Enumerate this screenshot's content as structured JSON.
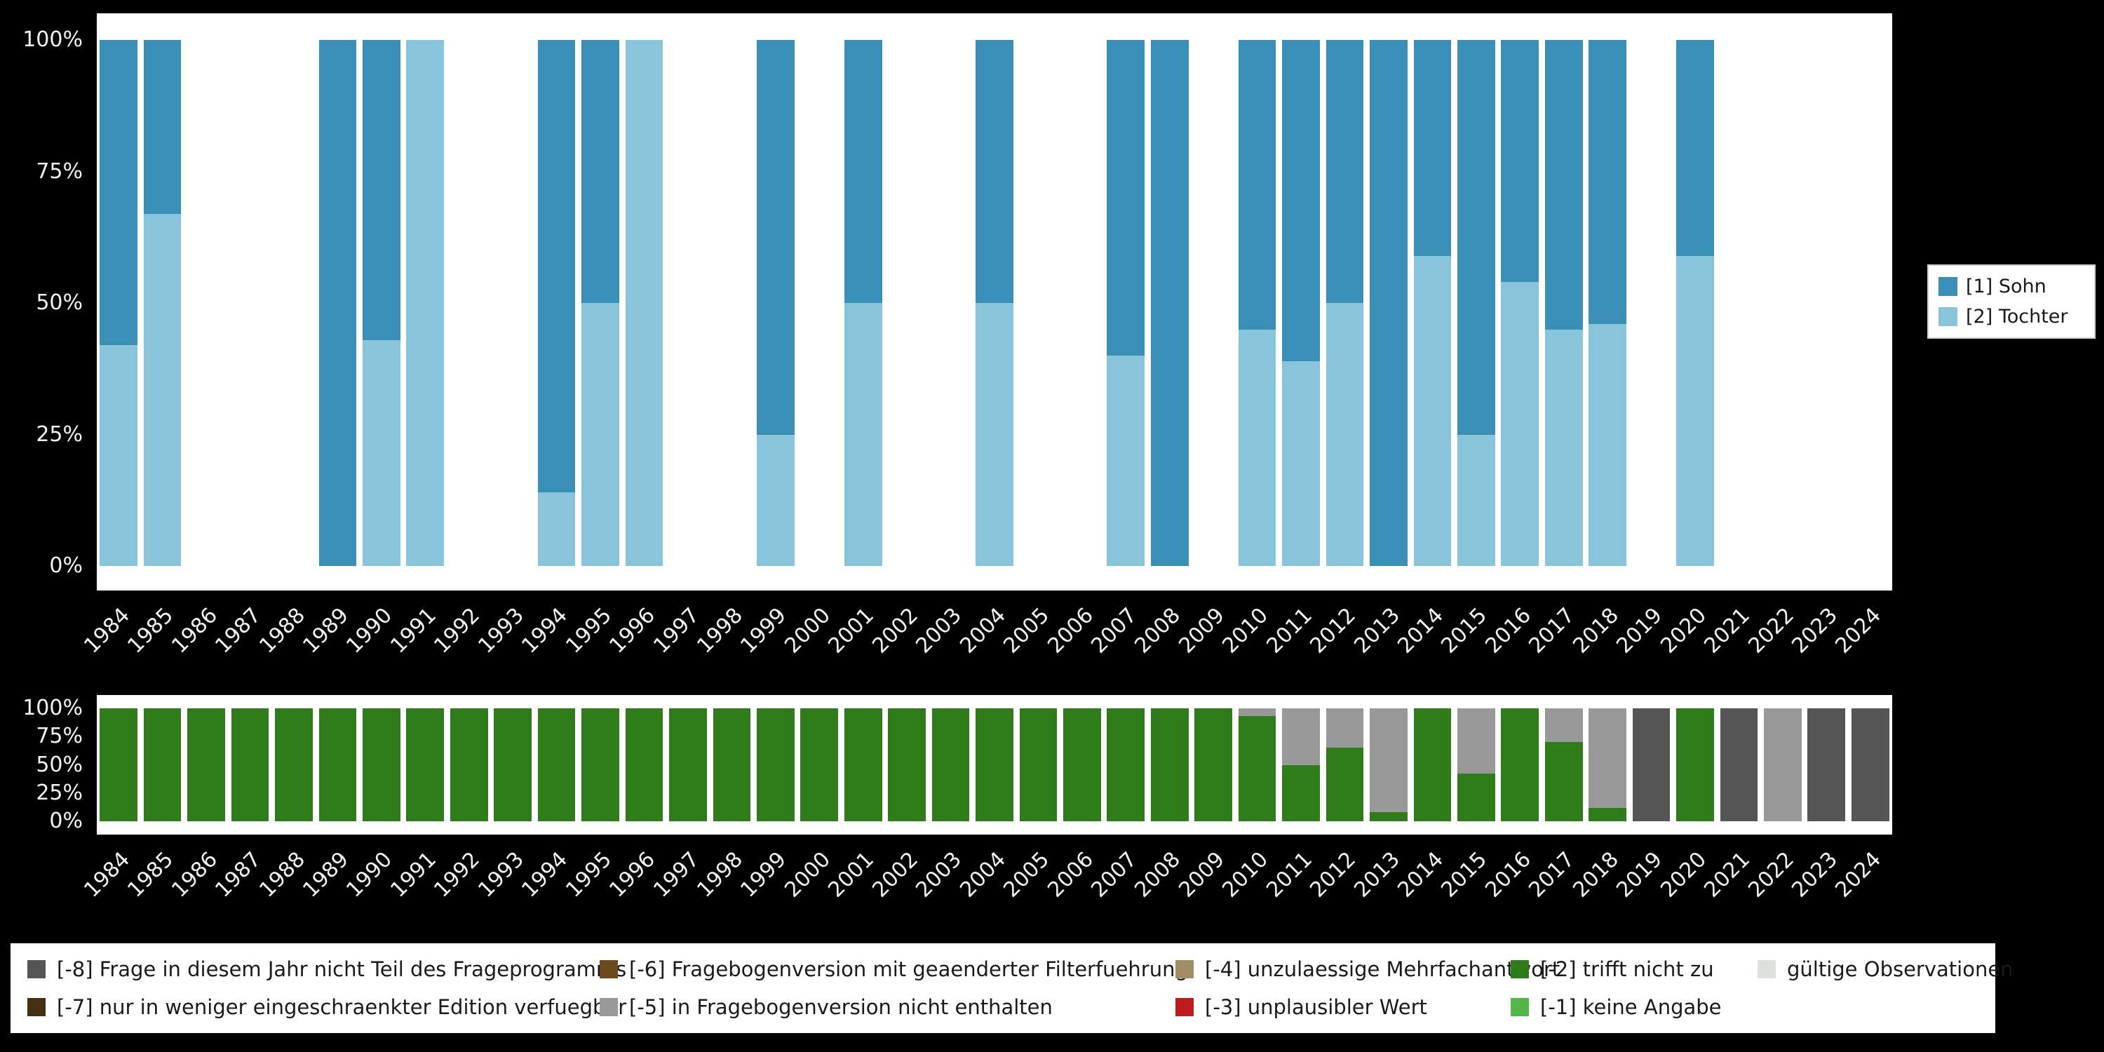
{
  "background_color": "#000000",
  "panel_color": "#ffffff",
  "chart_data": [
    {
      "id": "values-chart",
      "type": "bar",
      "stacked": true,
      "unit": "percent",
      "title": "",
      "xlabel": "",
      "ylabel": "",
      "ylim": [
        0,
        100
      ],
      "grid": false,
      "legend_position": "right",
      "categories": [
        "1984",
        "1985",
        "1986",
        "1987",
        "1988",
        "1989",
        "1990",
        "1991",
        "1992",
        "1993",
        "1994",
        "1995",
        "1996",
        "1997",
        "1998",
        "1999",
        "2000",
        "2001",
        "2002",
        "2003",
        "2004",
        "2005",
        "2006",
        "2007",
        "2008",
        "2009",
        "2010",
        "2011",
        "2012",
        "2013",
        "2014",
        "2015",
        "2016",
        "2017",
        "2018",
        "2019",
        "2020",
        "2021",
        "2022",
        "2023",
        "2024"
      ],
      "yticks": [
        {
          "label": "0%",
          "value": 0
        },
        {
          "label": "25%",
          "value": 25
        },
        {
          "label": "50%",
          "value": 50
        },
        {
          "label": "75%",
          "value": 75
        },
        {
          "label": "100%",
          "value": 100
        }
      ],
      "series": [
        {
          "name": "[1] Sohn",
          "color": "#3a8fb7",
          "values": [
            58,
            33,
            null,
            null,
            null,
            100,
            57,
            0,
            null,
            null,
            86,
            50,
            0,
            null,
            null,
            75,
            null,
            50,
            null,
            null,
            50,
            null,
            null,
            60,
            100,
            null,
            55,
            61,
            50,
            100,
            41,
            75,
            46,
            55,
            54,
            null,
            41,
            null,
            null,
            null,
            null
          ]
        },
        {
          "name": "[2] Tochter",
          "color": "#89c5da",
          "values": [
            42,
            67,
            null,
            null,
            null,
            0,
            43,
            100,
            null,
            null,
            14,
            50,
            100,
            null,
            null,
            25,
            null,
            50,
            null,
            null,
            50,
            null,
            null,
            40,
            0,
            null,
            45,
            39,
            50,
            0,
            59,
            25,
            54,
            45,
            46,
            null,
            59,
            null,
            null,
            null,
            null
          ]
        }
      ]
    },
    {
      "id": "missings-chart",
      "type": "bar",
      "stacked": true,
      "unit": "percent",
      "title": "",
      "xlabel": "",
      "ylabel": "",
      "ylim": [
        0,
        100
      ],
      "grid": false,
      "legend_position": "bottom",
      "categories": [
        "1984",
        "1985",
        "1986",
        "1987",
        "1988",
        "1989",
        "1990",
        "1991",
        "1992",
        "1993",
        "1994",
        "1995",
        "1996",
        "1997",
        "1998",
        "1999",
        "2000",
        "2001",
        "2002",
        "2003",
        "2004",
        "2005",
        "2006",
        "2007",
        "2008",
        "2009",
        "2010",
        "2011",
        "2012",
        "2013",
        "2014",
        "2015",
        "2016",
        "2017",
        "2018",
        "2019",
        "2020",
        "2021",
        "2022",
        "2023",
        "2024"
      ],
      "yticks": [
        {
          "label": "0%",
          "value": 0
        },
        {
          "label": "25%",
          "value": 25
        },
        {
          "label": "50%",
          "value": 50
        },
        {
          "label": "75%",
          "value": 75
        },
        {
          "label": "100%",
          "value": 100
        }
      ],
      "series": [
        {
          "name": "[-8] Frage in diesem Jahr nicht Teil des Frageprogramms",
          "color": "#555555",
          "values": [
            0,
            0,
            0,
            0,
            0,
            0,
            0,
            0,
            0,
            0,
            0,
            0,
            0,
            0,
            0,
            0,
            0,
            0,
            0,
            0,
            0,
            0,
            0,
            0,
            0,
            0,
            0,
            0,
            0,
            0,
            0,
            0,
            0,
            0,
            0,
            100,
            0,
            100,
            0,
            100,
            100
          ]
        },
        {
          "name": "[-5] in Fragebogenversion nicht enthalten",
          "color": "#999999",
          "values": [
            0,
            0,
            0,
            0,
            0,
            0,
            0,
            0,
            0,
            0,
            0,
            0,
            0,
            0,
            0,
            0,
            0,
            0,
            0,
            0,
            0,
            0,
            0,
            0,
            0,
            0,
            7,
            50,
            35,
            92,
            0,
            58,
            0,
            30,
            88,
            0,
            0,
            0,
            100,
            0,
            0
          ]
        },
        {
          "name": "[-2] trifft nicht zu",
          "color": "#2e7d1a",
          "values": [
            100,
            100,
            100,
            100,
            100,
            100,
            100,
            100,
            100,
            100,
            100,
            100,
            100,
            100,
            100,
            100,
            100,
            100,
            100,
            100,
            100,
            100,
            100,
            100,
            100,
            100,
            93,
            50,
            65,
            8,
            100,
            42,
            100,
            70,
            12,
            0,
            100,
            0,
            0,
            0,
            0
          ]
        }
      ]
    }
  ],
  "values_legend": {
    "items": [
      {
        "label": "[1] Sohn",
        "color": "#3a8fb7"
      },
      {
        "label": "[2] Tochter",
        "color": "#89c5da"
      }
    ]
  },
  "missing_legend": {
    "entries": [
      {
        "label": "[-8] Frage in diesem Jahr nicht Teil des Frageprogramms",
        "color": "#555555"
      },
      {
        "label": "[-7] nur in weniger eingeschraenkter Edition verfuegbar",
        "color": "#432f10"
      },
      {
        "label": "[-6] Fragebogenversion mit geaenderter Filterfuehrung",
        "color": "#6d4a1e"
      },
      {
        "label": "[-5] in Fragebogenversion nicht enthalten",
        "color": "#999999"
      },
      {
        "label": "[-4] unzulaessige Mehrfachantwort",
        "color": "#a28e66"
      },
      {
        "label": "[-3] unplausibler Wert",
        "color": "#be1c1c"
      },
      {
        "label": "[-2] trifft nicht zu",
        "color": "#2e7d1a"
      },
      {
        "label": "[-1] keine Angabe",
        "color": "#53b649"
      },
      {
        "label": "gültige Observationen",
        "color": "#dde1dc"
      }
    ]
  }
}
